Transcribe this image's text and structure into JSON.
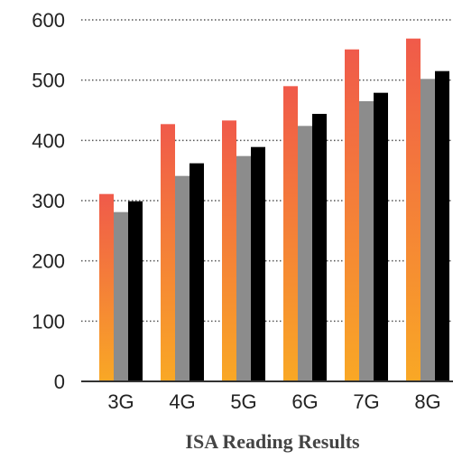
{
  "chart_data": {
    "type": "bar",
    "title": "ISA Reading Results",
    "xlabel": "",
    "ylabel": "",
    "categories": [
      "3G",
      "4G",
      "5G",
      "6G",
      "7G",
      "8G"
    ],
    "y_ticks": [
      "0",
      "100",
      "200",
      "300",
      "400",
      "500",
      "600"
    ],
    "ylim": [
      0,
      600
    ],
    "grid": "horizontal dotted",
    "legend": "none",
    "series": [
      {
        "values": [
          311,
          427,
          433,
          490,
          551,
          569
        ],
        "color_top": "#f05a4a",
        "color_bottom": "#f9a825"
      },
      {
        "values": [
          281,
          341,
          374,
          424,
          465,
          502
        ],
        "color": "#8c8c8c"
      },
      {
        "values": [
          299,
          362,
          389,
          444,
          479,
          515
        ],
        "color": "#000000"
      }
    ]
  }
}
